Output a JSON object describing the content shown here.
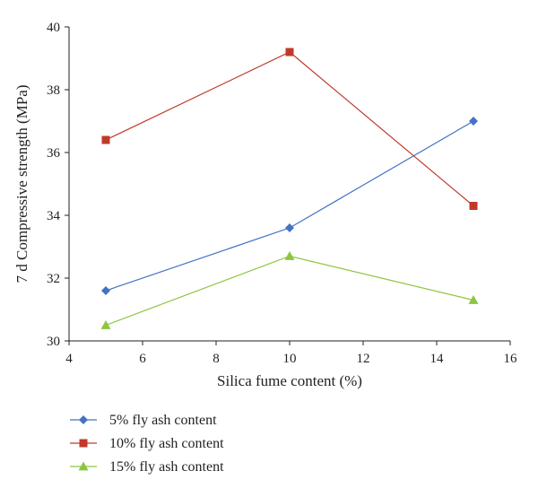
{
  "chart_data": {
    "type": "line",
    "xlabel": "Silica fume content (%)",
    "ylabel": "7 d Compressive strength (MPa)",
    "xlim": [
      4,
      16
    ],
    "ylim": [
      30,
      40
    ],
    "xticks": [
      4,
      6,
      8,
      10,
      12,
      14,
      16
    ],
    "yticks": [
      30,
      32,
      34,
      36,
      38,
      40
    ],
    "grid": false,
    "legend_placement": "bottom",
    "x": [
      5,
      10,
      15
    ],
    "series": [
      {
        "name": "5% fly ash content",
        "values": [
          31.6,
          33.6,
          37.0
        ],
        "color": "#4472c4",
        "marker": "diamond"
      },
      {
        "name": "10% fly ash content",
        "values": [
          36.4,
          39.2,
          34.3
        ],
        "color": "#c0392b",
        "marker": "square"
      },
      {
        "name": "15% fly ash content",
        "values": [
          30.5,
          32.7,
          31.3
        ],
        "color": "#8cc63f",
        "marker": "triangle"
      }
    ]
  }
}
